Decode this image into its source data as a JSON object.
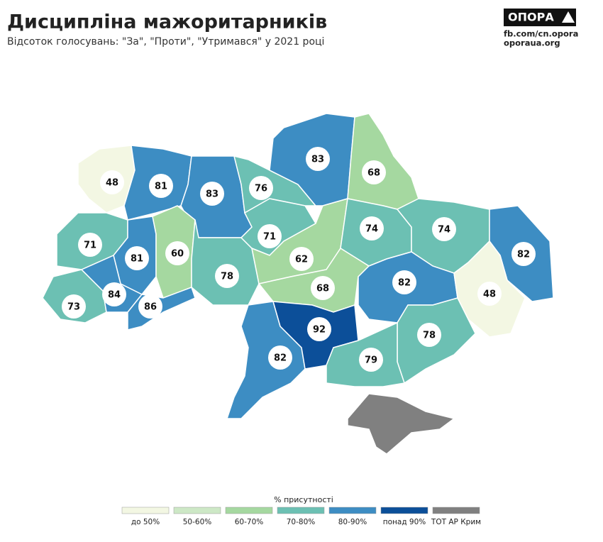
{
  "header": {
    "title": "Дисципліна мажоритарників",
    "subtitle": "Відсоток голосувань: \"За\", \"Проти\", \"Утримався\" у 2021 році"
  },
  "logo": {
    "brand": "ОПОРА",
    "links": [
      "fb.com/cn.opora",
      "oporaua.org"
    ]
  },
  "map": {
    "regions": [
      {
        "value": 48,
        "color": "#f3f7e3"
      },
      {
        "value": 81,
        "color": "#3d8dc3"
      },
      {
        "value": 83,
        "color": "#3d8dc3"
      },
      {
        "value": 76,
        "color": "#6cc0b3"
      },
      {
        "value": 83,
        "color": "#3d8dc3"
      },
      {
        "value": 68,
        "color": "#a5d8a0"
      },
      {
        "value": 71,
        "color": "#6cc0b3"
      },
      {
        "value": 81,
        "color": "#3d8dc3"
      },
      {
        "value": 60,
        "color": "#a5d8a0"
      },
      {
        "value": 78,
        "color": "#6cc0b3"
      },
      {
        "value": 71,
        "color": "#6cc0b3"
      },
      {
        "value": 62,
        "color": "#a5d8a0"
      },
      {
        "value": 74,
        "color": "#6cc0b3"
      },
      {
        "value": 74,
        "color": "#6cc0b3"
      },
      {
        "value": 82,
        "color": "#3d8dc3"
      },
      {
        "value": 73,
        "color": "#6cc0b3"
      },
      {
        "value": 84,
        "color": "#3d8dc3"
      },
      {
        "value": 86,
        "color": "#3d8dc3"
      },
      {
        "value": 68,
        "color": "#a5d8a0"
      },
      {
        "value": 82,
        "color": "#3d8dc3"
      },
      {
        "value": 48,
        "color": "#f3f7e3"
      },
      {
        "value": 82,
        "color": "#3d8dc3"
      },
      {
        "value": 92,
        "color": "#0c4f99"
      },
      {
        "value": 78,
        "color": "#6cc0b3"
      },
      {
        "value": 79,
        "color": "#6cc0b3"
      }
    ],
    "occupied_color": "#808080"
  },
  "legend": {
    "title": "% присутності",
    "items": [
      {
        "label": "до 50%",
        "color": "#f3f7e3"
      },
      {
        "label": "50-60%",
        "color": "#cde8c6"
      },
      {
        "label": "60-70%",
        "color": "#a5d8a0"
      },
      {
        "label": "70-80%",
        "color": "#6cc0b3"
      },
      {
        "label": "80-90%",
        "color": "#3d8dc3"
      },
      {
        "label": "понад 90%",
        "color": "#0c4f99"
      },
      {
        "label": "ТОТ АР Крим",
        "color": "#808080"
      }
    ]
  }
}
